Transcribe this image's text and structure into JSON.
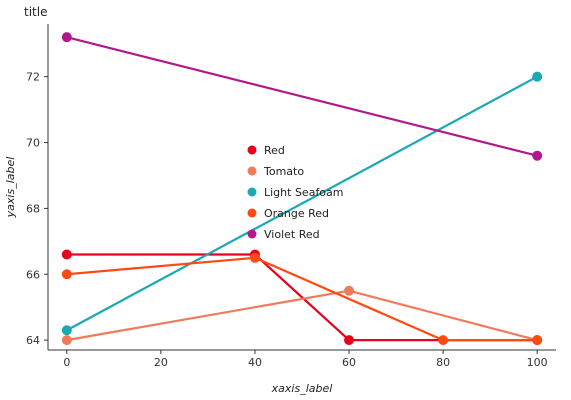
{
  "chart_data": {
    "type": "line",
    "title": "title",
    "xlabel": "xaxis_label",
    "ylabel": "yaxis_label",
    "xlim": [
      -4,
      104
    ],
    "ylim": [
      63.7,
      73.6
    ],
    "xticks": [
      0,
      20,
      40,
      60,
      80,
      100
    ],
    "yticks": [
      64,
      66,
      68,
      70,
      72
    ],
    "grid": false,
    "legend_position": "center",
    "series": [
      {
        "name": "Red",
        "color": "#e8001c",
        "x": [
          0,
          40,
          60,
          100
        ],
        "y": [
          66.6,
          66.6,
          64.0,
          64.0
        ]
      },
      {
        "name": "Tomato",
        "color": "#f07a5a",
        "x": [
          0,
          60,
          100
        ],
        "y": [
          64.0,
          65.5,
          64.0
        ]
      },
      {
        "name": "Light Seafoam",
        "color": "#1aa8b4",
        "x": [
          0,
          100
        ],
        "y": [
          64.3,
          72.0
        ]
      },
      {
        "name": "Orange Red",
        "color": "#ff4a14",
        "x": [
          0,
          40,
          80,
          100
        ],
        "y": [
          66.0,
          66.5,
          64.0,
          64.0
        ]
      },
      {
        "name": "Violet Red",
        "color": "#b2188c",
        "x": [
          0,
          100
        ],
        "y": [
          73.2,
          69.6
        ]
      }
    ]
  }
}
